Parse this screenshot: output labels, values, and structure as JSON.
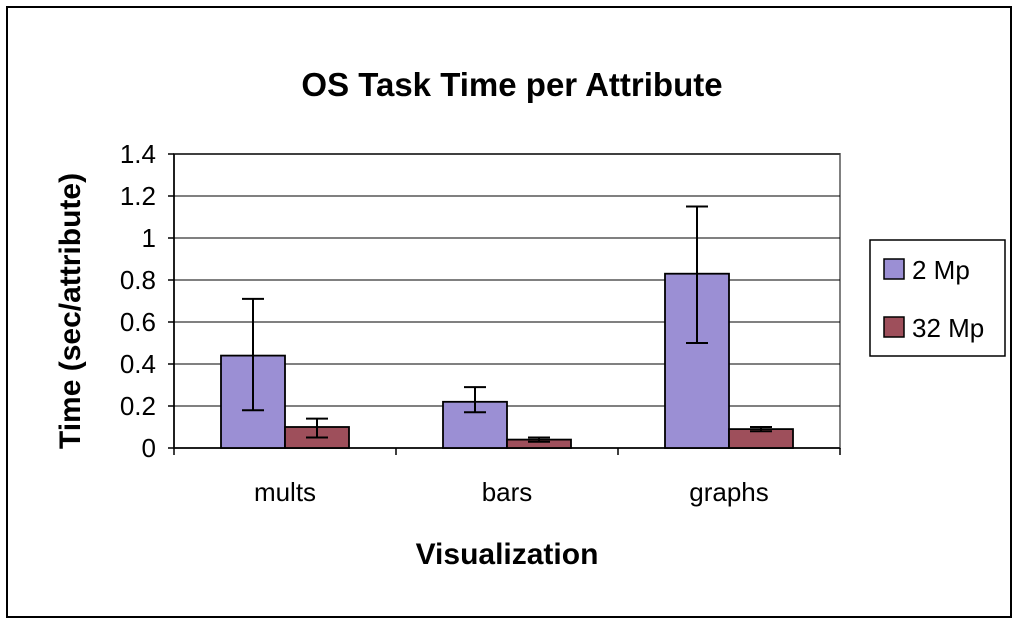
{
  "chart_data": {
    "type": "bar",
    "title": "OS Task Time per Attribute",
    "xlabel": "Visualization",
    "ylabel": "Time (sec/attribute)",
    "categories": [
      "mults",
      "bars",
      "graphs"
    ],
    "ylim": [
      0,
      1.4
    ],
    "yticks": [
      0,
      0.2,
      0.4,
      0.6,
      0.8,
      1,
      1.2,
      1.4
    ],
    "ytick_labels": [
      "0",
      "0.2",
      "0.4",
      "0.6",
      "0.8",
      "1",
      "1.2",
      "1.4"
    ],
    "grid": true,
    "legend_position": "right",
    "series": [
      {
        "name": "2 Mp",
        "color": "#9b8fd4",
        "values": [
          0.44,
          0.22,
          0.83
        ],
        "error_low": [
          0.18,
          0.17,
          0.5
        ],
        "error_high": [
          0.71,
          0.29,
          1.15
        ]
      },
      {
        "name": "32 Mp",
        "color": "#9e4f5b",
        "values": [
          0.1,
          0.04,
          0.09
        ],
        "error_low": [
          0.05,
          0.03,
          0.08
        ],
        "error_high": [
          0.14,
          0.05,
          0.1
        ]
      }
    ]
  }
}
